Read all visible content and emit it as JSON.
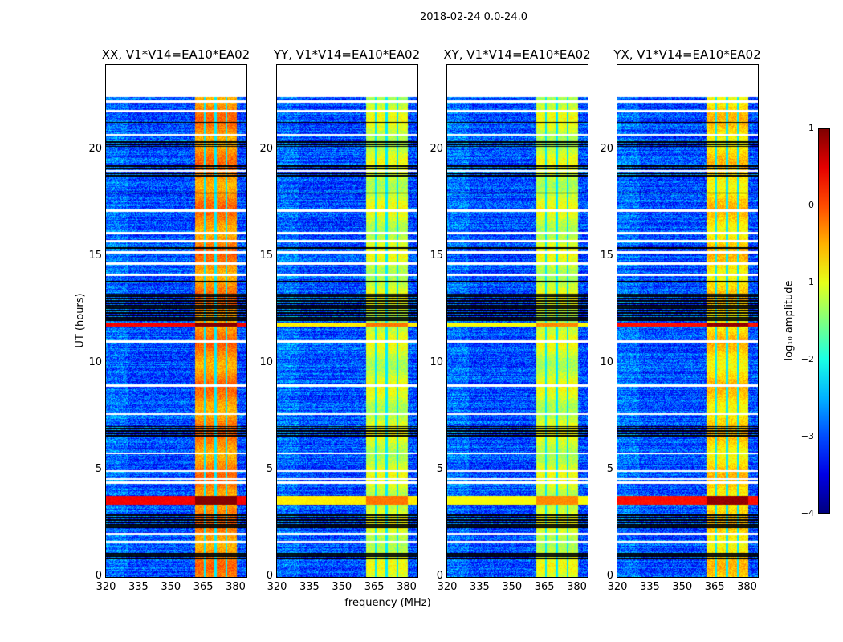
{
  "chart_data": {
    "type": "heatmap",
    "title": "2018-02-24 0.0-24.0",
    "xlabel": "frequency (MHz)",
    "ylabel": "UT (hours)",
    "xlim": [
      320,
      385
    ],
    "ylim": [
      0,
      24
    ],
    "xticks": [
      "320",
      "335",
      "350",
      "365",
      "380"
    ],
    "yticks": [
      "0",
      "5",
      "10",
      "15",
      "20"
    ],
    "data_extent_hours": [
      0,
      22.5
    ],
    "background_log_amplitude": -3,
    "rfi_band_mhz": [
      361,
      380.5
    ],
    "rfi_band_gaps_mhz": [
      365.5,
      370.5,
      375.5
    ],
    "white_flag_rows_hours": [
      22.3,
      21.86,
      20.74,
      19.05,
      17.18,
      16.13,
      15.75,
      15.23,
      14.7,
      14.18,
      11.06,
      9.0,
      7.65,
      5.81,
      4.99,
      4.61,
      4.43,
      2.03,
      1.65
    ],
    "black_flag_bands_hours": [
      [
        20.2,
        20.5
      ],
      [
        18.8,
        19.3
      ],
      [
        17.95,
        18.05
      ],
      [
        12.0,
        13.3
      ],
      [
        6.6,
        7.1
      ],
      [
        2.3,
        3.0
      ],
      [
        0.8,
        1.2
      ],
      [
        15.4,
        15.5
      ],
      [
        13.8,
        13.9
      ],
      [
        21.3,
        21.4
      ]
    ],
    "strong_rfi_rows_hours": [
      [
        3.4,
        3.8
      ],
      [
        11.75,
        11.95
      ]
    ],
    "panels": [
      {
        "title": "XX, V1*V14=EA10*EA02",
        "band_level": -0.3,
        "rfi_row_level": 0.4
      },
      {
        "title": "YY, V1*V14=EA10*EA02",
        "band_level": -1.1,
        "rfi_row_level": -0.8
      },
      {
        "title": "XY, V1*V14=EA10*EA02",
        "band_level": -1.1,
        "rfi_row_level": -0.9
      },
      {
        "title": "YX, V1*V14=EA10*EA02",
        "band_level": -0.7,
        "rfi_row_level": 0.3
      }
    ],
    "colorbar": {
      "label": "log₁₀ amplitude",
      "colormap": "jet",
      "range": [
        -4,
        1
      ],
      "ticks": [
        "1",
        "0",
        "−1",
        "−2",
        "−3",
        "−4"
      ]
    }
  }
}
